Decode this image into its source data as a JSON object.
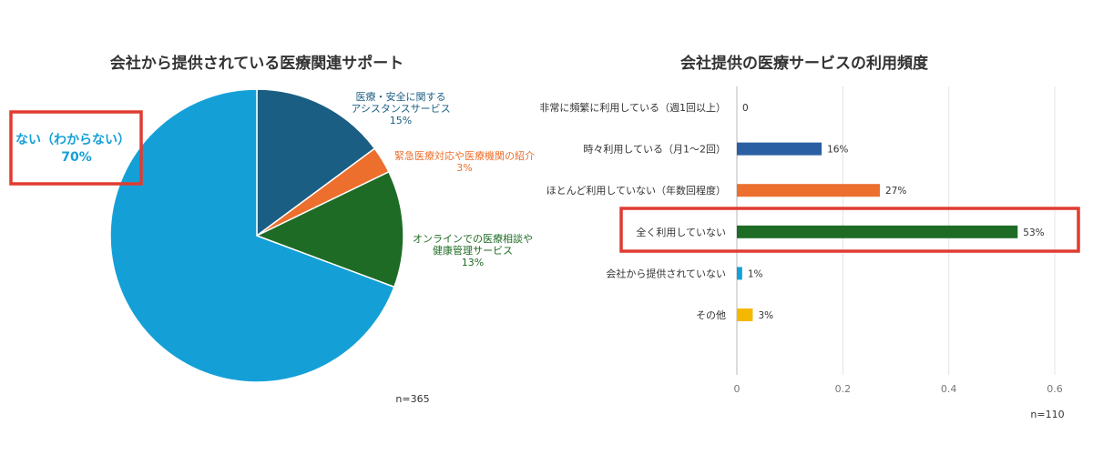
{
  "chart_data": [
    {
      "type": "pie",
      "title": "会社から提供されている医療関連サポート",
      "slices": [
        {
          "label_lines": [
            "医療・安全に関する",
            "アシスタンスサービス"
          ],
          "value_label": "15%",
          "value": 15,
          "color": "#1b5e84"
        },
        {
          "label_lines": [
            "緊急医療対応や医療機関の紹介"
          ],
          "value_label": "3%",
          "value": 3,
          "color": "#ec6f2d"
        },
        {
          "label_lines": [
            "オンラインでの医療相談や",
            "健康管理サービス"
          ],
          "value_label": "13%",
          "value": 13,
          "color": "#1e6b25"
        },
        {
          "label_lines": [
            "ない（わからない）"
          ],
          "value_label": "70%",
          "value": 70,
          "color": "#14a0d7"
        }
      ],
      "highlight": "ない（わからない）",
      "n_label": "n=365"
    },
    {
      "type": "bar",
      "orientation": "horizontal",
      "title": "会社提供の医療サービスの利用頻度",
      "categories": [
        "非常に頻繁に利用している（週1回以上）",
        "時々利用している（月1〜2回）",
        "ほとんど利用していない（年数回程度）",
        "全く利用していない",
        "会社から提供されていない",
        "その他"
      ],
      "values": [
        0,
        0.16,
        0.27,
        0.53,
        0.01,
        0.03
      ],
      "value_labels": [
        "0",
        "16%",
        "27%",
        "53%",
        "1%",
        "3%"
      ],
      "colors": [
        "#1b5e84",
        "#2b5fa3",
        "#ec6f2d",
        "#1e6b25",
        "#14a0d7",
        "#f5b800"
      ],
      "xlim": [
        0,
        0.6
      ],
      "xticks": [
        "0",
        "0.2",
        "0.4",
        "0.6"
      ],
      "grid": true,
      "highlight": "全く利用していない",
      "n_label": "n=110"
    }
  ]
}
